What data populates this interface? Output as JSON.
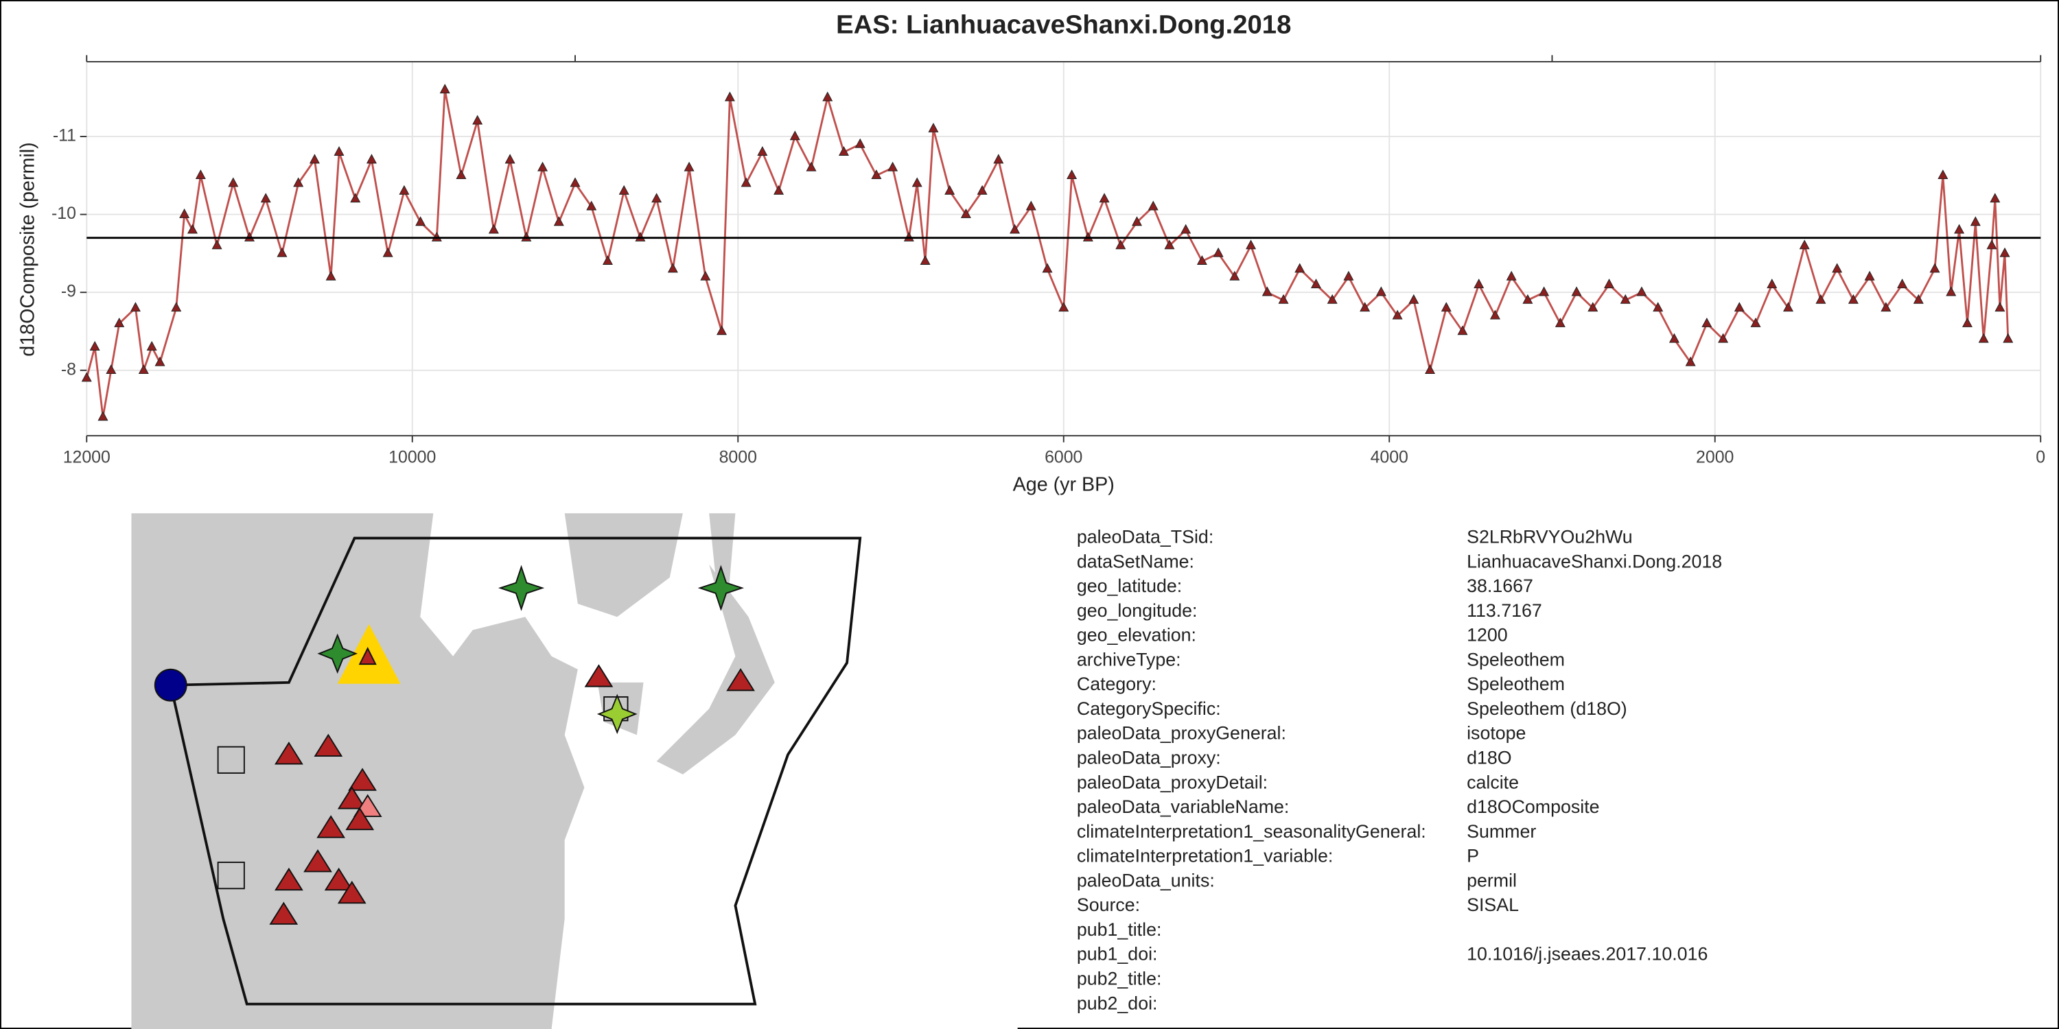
{
  "chart_data": {
    "type": "line",
    "title": "EAS: LianhuacaveShanxi.Dong.2018",
    "x_label": "Age (yr BP)",
    "y_label": "d18OComposite (permil)",
    "xlim": [
      12000,
      0
    ],
    "xticks": [
      12000,
      10000,
      8000,
      6000,
      4000,
      2000,
      0
    ],
    "top_xticks": [
      12000,
      9000,
      3000,
      0
    ],
    "ylim": [
      -7.16,
      -11.96
    ],
    "yticks": [
      -11,
      -10,
      -9,
      -8
    ],
    "grid": true,
    "color": "#c0504d",
    "mean_line": -9.7,
    "x": [
      12000,
      11950,
      11900,
      11850,
      11800,
      11700,
      11650,
      11600,
      11550,
      11450,
      11400,
      11350,
      11300,
      11200,
      11100,
      11000,
      10900,
      10800,
      10700,
      10600,
      10500,
      10450,
      10350,
      10250,
      10150,
      10050,
      9950,
      9850,
      9800,
      9700,
      9600,
      9500,
      9400,
      9300,
      9200,
      9100,
      9000,
      8900,
      8800,
      8700,
      8600,
      8500,
      8400,
      8300,
      8200,
      8100,
      8050,
      7950,
      7850,
      7750,
      7650,
      7550,
      7450,
      7350,
      7250,
      7150,
      7050,
      6950,
      6900,
      6850,
      6800,
      6700,
      6600,
      6500,
      6400,
      6300,
      6200,
      6100,
      6000,
      5950,
      5850,
      5750,
      5650,
      5550,
      5450,
      5350,
      5250,
      5150,
      5050,
      4950,
      4850,
      4750,
      4650,
      4550,
      4450,
      4350,
      4250,
      4150,
      4050,
      3950,
      3850,
      3750,
      3650,
      3550,
      3450,
      3350,
      3250,
      3150,
      3050,
      2950,
      2850,
      2750,
      2650,
      2550,
      2450,
      2350,
      2250,
      2150,
      2050,
      1950,
      1850,
      1750,
      1650,
      1550,
      1450,
      1350,
      1250,
      1150,
      1050,
      950,
      850,
      750,
      650,
      600,
      550,
      500,
      450,
      400,
      350,
      300,
      280,
      250,
      220,
      200
    ],
    "values": [
      -7.9,
      -8.3,
      -7.4,
      -8.0,
      -8.6,
      -8.8,
      -8.0,
      -8.3,
      -8.1,
      -8.8,
      -10.0,
      -9.8,
      -10.5,
      -9.6,
      -10.4,
      -9.7,
      -10.2,
      -9.5,
      -10.4,
      -10.7,
      -9.2,
      -10.8,
      -10.2,
      -10.7,
      -9.5,
      -10.3,
      -9.9,
      -9.7,
      -11.6,
      -10.5,
      -11.2,
      -9.8,
      -10.7,
      -9.7,
      -10.6,
      -9.9,
      -10.4,
      -10.1,
      -9.4,
      -10.3,
      -9.7,
      -10.2,
      -9.3,
      -10.6,
      -9.2,
      -8.5,
      -11.5,
      -10.4,
      -10.8,
      -10.3,
      -11.0,
      -10.6,
      -11.5,
      -10.8,
      -10.9,
      -10.5,
      -10.6,
      -9.7,
      -10.4,
      -9.4,
      -11.1,
      -10.3,
      -10.0,
      -10.3,
      -10.7,
      -9.8,
      -10.1,
      -9.3,
      -8.8,
      -10.5,
      -9.7,
      -10.2,
      -9.6,
      -9.9,
      -10.1,
      -9.6,
      -9.8,
      -9.4,
      -9.5,
      -9.2,
      -9.6,
      -9.0,
      -8.9,
      -9.3,
      -9.1,
      -8.9,
      -9.2,
      -8.8,
      -9.0,
      -8.7,
      -8.9,
      -8.0,
      -8.8,
      -8.5,
      -9.1,
      -8.7,
      -9.2,
      -8.9,
      -9.0,
      -8.6,
      -9.0,
      -8.8,
      -9.1,
      -8.9,
      -9.0,
      -8.8,
      -8.4,
      -8.1,
      -8.6,
      -8.4,
      -8.8,
      -8.6,
      -9.1,
      -8.8,
      -9.6,
      -8.9,
      -9.3,
      -8.9,
      -9.2,
      -8.8,
      -9.1,
      -8.9,
      -9.3,
      -10.5,
      -9.0,
      -9.8,
      -8.6,
      -9.9,
      -8.4,
      -9.6,
      -10.2,
      -8.8,
      -9.5,
      -8.4
    ]
  },
  "metadata": {
    "rows": [
      [
        "paleoData_TSid:",
        "S2LRbRVYOu2hWu"
      ],
      [
        "dataSetName:",
        "LianhuacaveShanxi.Dong.2018"
      ],
      [
        "geo_latitude:",
        "38.1667"
      ],
      [
        "geo_longitude:",
        "113.7167"
      ],
      [
        "geo_elevation:",
        "1200"
      ],
      [
        "archiveType:",
        "Speleothem"
      ],
      [
        "Category:",
        "Speleothem"
      ],
      [
        "CategorySpecific:",
        "Speleothem (d18O)"
      ],
      [
        "paleoData_proxyGeneral:",
        "isotope"
      ],
      [
        "paleoData_proxy:",
        "d18O"
      ],
      [
        "paleoData_proxyDetail:",
        "calcite"
      ],
      [
        "paleoData_variableName:",
        "d18OComposite"
      ],
      [
        "climateInterpretation1_seasonalityGeneral:",
        "Summer"
      ],
      [
        "climateInterpretation1_variable:",
        "P"
      ],
      [
        "paleoData_units:",
        "permil"
      ],
      [
        "Source:",
        "SISAL"
      ],
      [
        "pub1_title:"
      ],
      [
        "pub1_doi:",
        "10.1016/j.jseaes.2017.10.016"
      ],
      [
        "pub2_title:"
      ],
      [
        "pub2_doi:"
      ]
    ]
  }
}
